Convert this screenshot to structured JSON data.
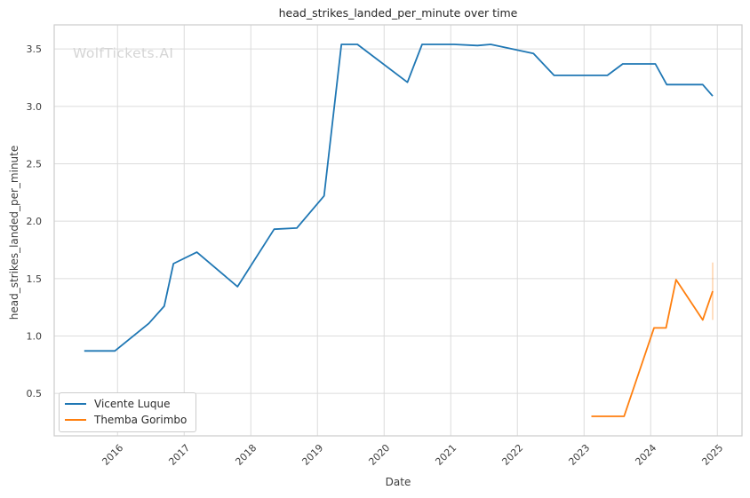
{
  "watermark": "WolfTickets.AI",
  "colors": {
    "background": "#ffffff",
    "grid": "#dcdcdc",
    "spine": "#cccccc",
    "text": "#3d3d3d",
    "title_text": "#262626",
    "watermark": "#d5d5d5",
    "legend_border": "#cccccc"
  },
  "chart_data": {
    "type": "line",
    "title": "head_strikes_landed_per_minute over time",
    "xlabel": "Date",
    "ylabel": "head_strikes_landed_per_minute",
    "grid": true,
    "legend_position": "lower-left",
    "xlim": [
      2015.05,
      2025.37
    ],
    "ylim": [
      0.13,
      3.71
    ],
    "x_ticks": [
      2016,
      2017,
      2018,
      2019,
      2020,
      2021,
      2022,
      2023,
      2024,
      2025
    ],
    "y_ticks": [
      0.5,
      1.0,
      1.5,
      2.0,
      2.5,
      3.0,
      3.5
    ],
    "series": [
      {
        "name": "Vicente Luque",
        "color": "#1f77b4",
        "x": [
          2015.5,
          2015.96,
          2016.47,
          2016.7,
          2016.84,
          2017.19,
          2017.8,
          2018.35,
          2018.69,
          2019.1,
          2019.36,
          2019.6,
          2020.35,
          2020.57,
          2021.05,
          2021.4,
          2021.6,
          2022.24,
          2022.55,
          2023.35,
          2023.58,
          2024.07,
          2024.24,
          2024.78,
          2024.93
        ],
        "y": [
          0.87,
          0.87,
          1.11,
          1.26,
          1.63,
          1.73,
          1.43,
          1.93,
          1.94,
          2.22,
          3.54,
          3.54,
          3.21,
          3.54,
          3.54,
          3.53,
          3.54,
          3.46,
          3.27,
          3.27,
          3.37,
          3.37,
          3.19,
          3.19,
          3.09
        ]
      },
      {
        "name": "Themba Gorimbo",
        "color": "#ff7f0e",
        "x": [
          2023.11,
          2023.6,
          2024.05,
          2024.23,
          2024.38,
          2024.78,
          2024.93
        ],
        "y": [
          0.3,
          0.3,
          1.07,
          1.07,
          1.49,
          1.14,
          1.39
        ],
        "error_bar": {
          "x": 2024.93,
          "y_low": 1.14,
          "y_high": 1.64
        }
      }
    ]
  }
}
